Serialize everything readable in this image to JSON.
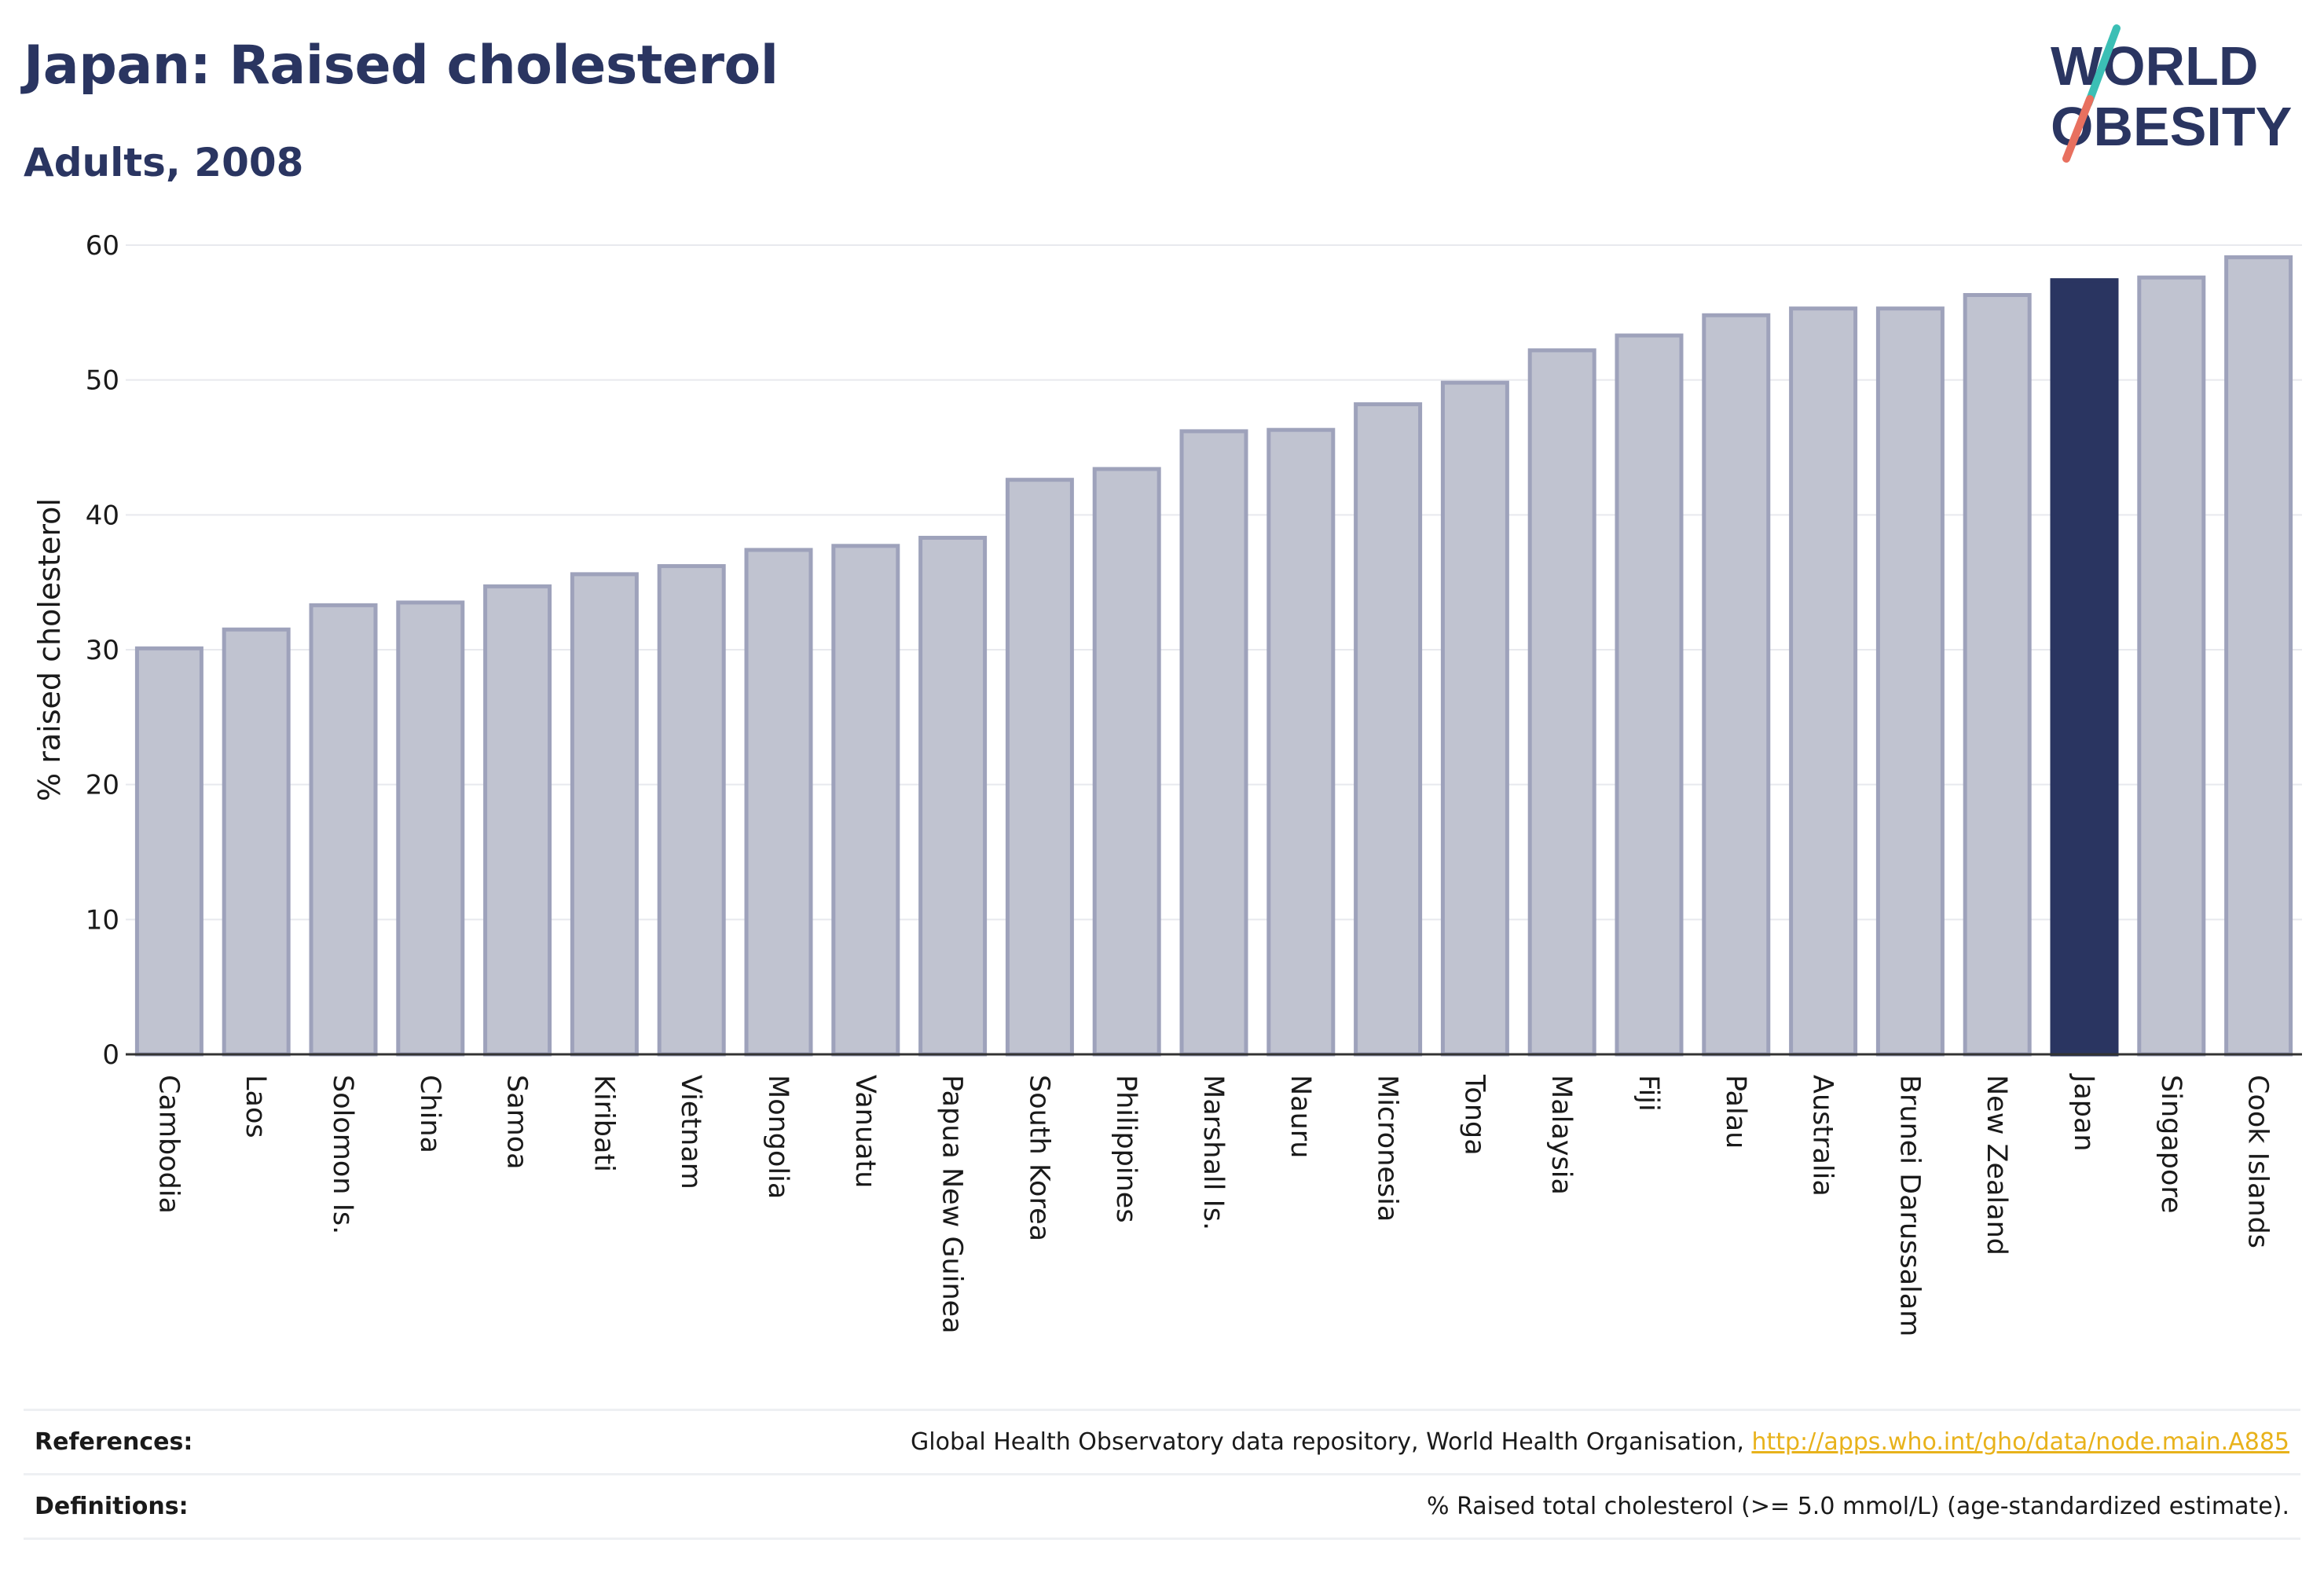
{
  "title": "Japan: Raised cholesterol",
  "subtitle": "Adults, 2008",
  "logo": {
    "line1": "WORLD",
    "line2": "OBESITY"
  },
  "colors": {
    "highlight": "#2a3561",
    "bar_fill": "#c0c3d0",
    "bar_stroke": "#9ea2bb",
    "grid": "#e8e9ee",
    "axis": "#333333",
    "logo_teal": "#3bbfb5",
    "logo_coral": "#e8705f",
    "link": "#e8b21b"
  },
  "chart_data": {
    "type": "bar",
    "ylabel": "% raised cholesterol",
    "xlabel": "",
    "ylim": [
      0,
      60
    ],
    "yticks": [
      0,
      10,
      20,
      30,
      40,
      50,
      60
    ],
    "grid": true,
    "highlight": "Japan",
    "categories": [
      "Cambodia",
      "Laos",
      "Solomon Is.",
      "China",
      "Samoa",
      "Kiribati",
      "Vietnam",
      "Mongolia",
      "Vanuatu",
      "Papua New Guinea",
      "South Korea",
      "Philippines",
      "Marshall Is.",
      "Nauru",
      "Micronesia",
      "Tonga",
      "Malaysia",
      "Fiji",
      "Palau",
      "Australia",
      "Brunei Darussalam",
      "New Zealand",
      "Japan",
      "Singapore",
      "Cook Islands"
    ],
    "values": [
      30.1,
      31.5,
      33.3,
      33.5,
      34.7,
      35.6,
      36.2,
      37.4,
      37.7,
      38.3,
      42.6,
      43.4,
      46.2,
      46.3,
      48.2,
      49.8,
      52.2,
      53.3,
      54.8,
      55.3,
      55.3,
      56.3,
      57.4,
      57.6,
      59.1
    ]
  },
  "footer": {
    "references_label": "References:",
    "references_text": "Global Health Observatory data repository, World Health Organisation, ",
    "references_link": "http://apps.who.int/gho/data/node.main.A885",
    "definitions_label": "Definitions:",
    "definitions_text": "% Raised total cholesterol (>= 5.0 mmol/L) (age-standardized estimate)."
  }
}
